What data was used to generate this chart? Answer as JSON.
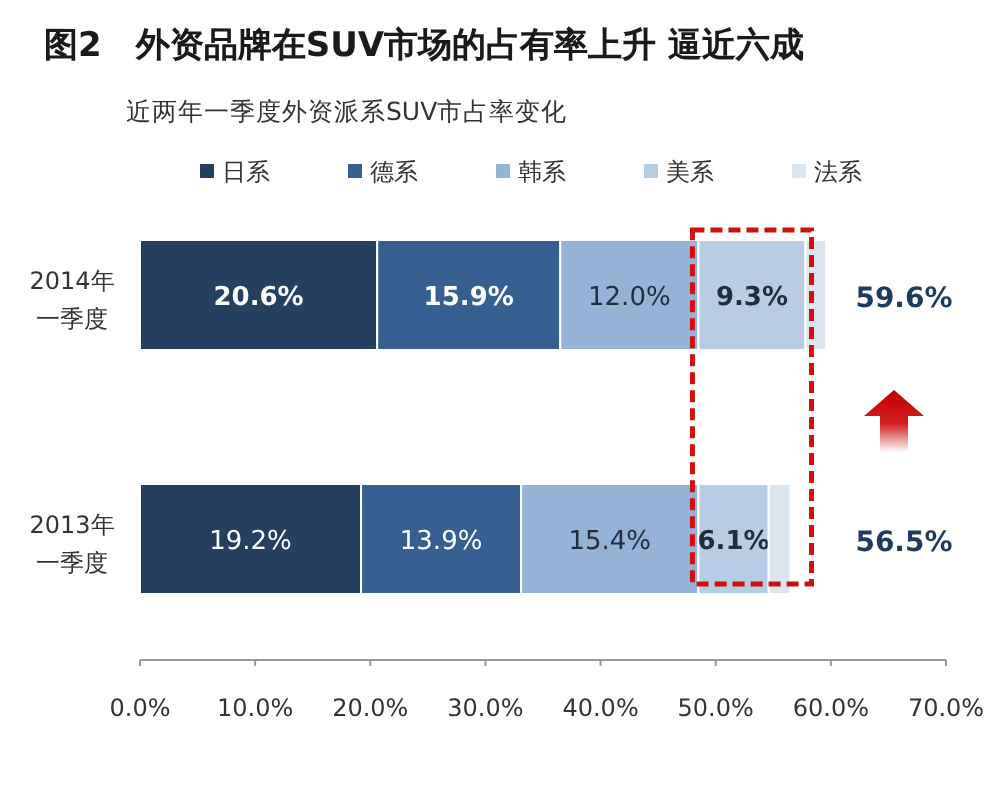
{
  "chart_data": {
    "type": "bar",
    "orientation": "horizontal",
    "stacked": true,
    "title": "图2　外资品牌在SUV市场的占有率上升 逼近六成",
    "subtitle": "近两年一季度外资派系SUV市占率变化",
    "categories": [
      "2014年一季度",
      "2013年一季度"
    ],
    "series": [
      {
        "name": "日系",
        "color": "#243f60",
        "values": [
          20.6,
          19.2
        ],
        "value_labels": [
          "20.6%",
          "19.2%"
        ]
      },
      {
        "name": "德系",
        "color": "#366092",
        "values": [
          15.9,
          13.9
        ],
        "value_labels": [
          "15.9%",
          "13.9%"
        ]
      },
      {
        "name": "韩系",
        "color": "#95b3d7",
        "values": [
          12.0,
          15.4
        ],
        "value_labels": [
          "12.0%",
          "15.4%"
        ]
      },
      {
        "name": "美系",
        "color": "#b8cce4",
        "values": [
          9.3,
          6.1
        ],
        "value_labels": [
          "9.3%",
          "6.1%"
        ]
      },
      {
        "name": "法系",
        "color": "#dce6f1",
        "values": [
          1.8,
          1.9
        ],
        "value_labels": [
          null,
          null
        ]
      }
    ],
    "totals": [
      "59.6%",
      "56.5%"
    ],
    "xlim": [
      0,
      70
    ],
    "xticks": [
      {
        "value": 0,
        "label": "0.0%"
      },
      {
        "value": 10,
        "label": "10.0%"
      },
      {
        "value": 20,
        "label": "20.0%"
      },
      {
        "value": 30,
        "label": "30.0%"
      },
      {
        "value": 40,
        "label": "40.0%"
      },
      {
        "value": 50,
        "label": "50.0%"
      },
      {
        "value": 60,
        "label": "60.0%"
      },
      {
        "value": 70,
        "label": "70.0%"
      }
    ],
    "grid": false,
    "legend": "top"
  }
}
